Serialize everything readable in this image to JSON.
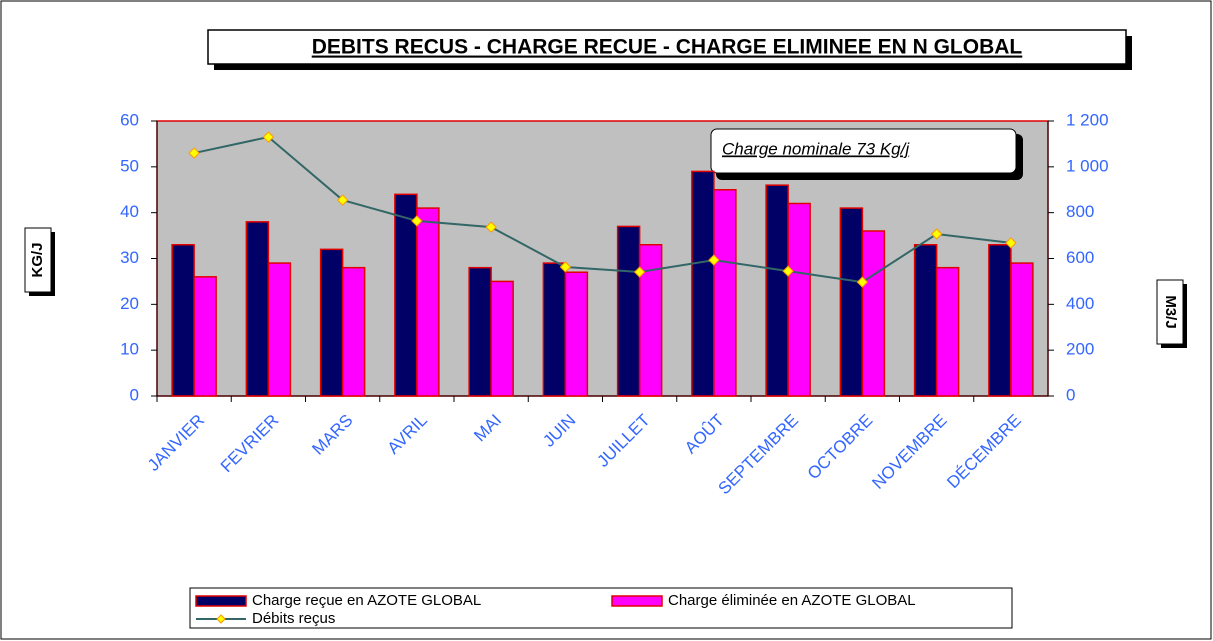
{
  "chart_data": {
    "type": "bar_line",
    "title": "DEBITS RECUS - CHARGE RECUE - CHARGE ELIMINEE EN N GLOBAL",
    "annotation": "Charge nominale 73  Kg/j",
    "y_label": "KG/J",
    "y2_label": "M3/J",
    "categories": [
      "JANVIER",
      "FEVRIER",
      "MARS",
      "AVRIL",
      "MAI",
      "JUIN",
      "JUILLET",
      "AOÛT",
      "SEPTEMBRE",
      "OCTOBRE",
      "NOVEMBRE",
      "DÉCEMBRE"
    ],
    "series": [
      {
        "name": "Charge reçue en AZOTE GLOBAL",
        "color": "#000066",
        "values": [
          33,
          38,
          32,
          44,
          28,
          29,
          37,
          49,
          46,
          41,
          33,
          33
        ]
      },
      {
        "name": "Charge éliminée  en AZOTE GLOBAL",
        "color": "#ff00ff",
        "values": [
          26,
          29,
          28,
          41,
          25,
          27,
          33,
          45,
          42,
          36,
          28,
          29
        ]
      },
      {
        "name": "Débits reçus",
        "color": "#336666",
        "axis": "y2",
        "values": [
          1060,
          1130,
          855,
          764,
          737,
          563,
          541,
          593,
          545,
          497,
          707,
          668
        ]
      }
    ],
    "ylim": [
      0,
      60
    ],
    "yticks": [
      0,
      10,
      20,
      30,
      40,
      50,
      60
    ],
    "y2lim": [
      0,
      1200
    ],
    "y2ticks": [
      0,
      200,
      400,
      600,
      800,
      {
        "value": 1000,
        "label": "1 000"
      },
      {
        "value": 1200,
        "label": "1 200"
      }
    ],
    "grid": false
  }
}
